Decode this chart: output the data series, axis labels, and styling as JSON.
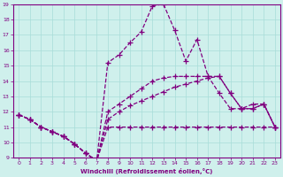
{
  "bg_color": "#cff0ec",
  "line_color": "#800080",
  "grid_color": "#a8ddd8",
  "xlabel": "Windchill (Refroidissement éolien,°C)",
  "xlim": [
    -0.5,
    23.5
  ],
  "ylim": [
    9,
    19
  ],
  "xticks": [
    0,
    1,
    2,
    3,
    4,
    5,
    6,
    7,
    8,
    9,
    10,
    11,
    12,
    13,
    14,
    15,
    16,
    17,
    18,
    19,
    20,
    21,
    22,
    23
  ],
  "yticks": [
    9,
    10,
    11,
    12,
    13,
    14,
    15,
    16,
    17,
    18,
    19
  ],
  "lines": [
    {
      "x": [
        0,
        1,
        2,
        3,
        4,
        5,
        6,
        7,
        8,
        9,
        10,
        11,
        12,
        13,
        14,
        15,
        16,
        17,
        18,
        19,
        20,
        21,
        22,
        23
      ],
      "y": [
        11.8,
        11.5,
        11.0,
        10.7,
        10.4,
        9.9,
        9.3,
        8.8,
        11.0,
        11.0,
        11.0,
        11.0,
        11.0,
        11.0,
        11.0,
        11.0,
        11.0,
        11.0,
        11.0,
        11.0,
        11.0,
        11.0,
        11.0,
        11.0
      ]
    },
    {
      "x": [
        0,
        1,
        2,
        3,
        4,
        5,
        6,
        7,
        8,
        9,
        10,
        11,
        12,
        13,
        14,
        15,
        16,
        17,
        18,
        19,
        20,
        21,
        22,
        23
      ],
      "y": [
        11.8,
        11.5,
        11.0,
        10.7,
        10.4,
        9.9,
        9.3,
        8.8,
        11.5,
        12.0,
        12.4,
        12.7,
        13.0,
        13.3,
        13.6,
        13.8,
        14.0,
        14.2,
        14.3,
        13.2,
        12.2,
        12.2,
        12.5,
        11.0
      ]
    },
    {
      "x": [
        0,
        1,
        2,
        3,
        4,
        5,
        6,
        7,
        8,
        9,
        10,
        11,
        12,
        13,
        14,
        15,
        16,
        17,
        18,
        19,
        20,
        21,
        22,
        23
      ],
      "y": [
        11.8,
        11.5,
        11.0,
        10.7,
        10.4,
        9.9,
        9.3,
        8.8,
        12.0,
        12.5,
        13.0,
        13.5,
        14.0,
        14.2,
        14.3,
        14.3,
        14.3,
        14.3,
        14.3,
        13.2,
        12.2,
        12.2,
        12.5,
        11.0
      ]
    },
    {
      "x": [
        0,
        1,
        2,
        3,
        4,
        5,
        6,
        7,
        8,
        9,
        10,
        11,
        12,
        13,
        14,
        15,
        16,
        17,
        18,
        19,
        20,
        21,
        22,
        23
      ],
      "y": [
        11.8,
        11.5,
        11.0,
        10.7,
        10.4,
        9.9,
        9.3,
        8.8,
        15.2,
        15.7,
        16.5,
        17.2,
        18.9,
        19.0,
        17.3,
        15.3,
        16.7,
        14.3,
        13.2,
        12.2,
        12.2,
        12.5,
        12.5,
        11.0
      ]
    }
  ]
}
